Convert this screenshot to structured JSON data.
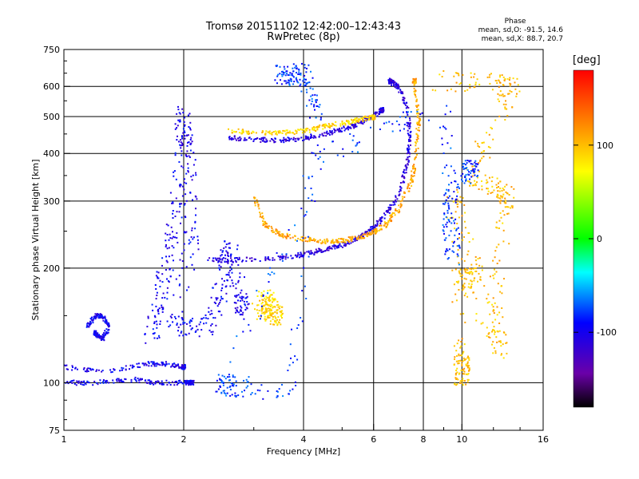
{
  "header": {
    "title_line1": "Tromsø 20151102 12:42:00–12:43:43",
    "title_line2": "RwPretec (8p)",
    "phase_title": "Phase",
    "phase_o": "mean, sd,O: -91.5, 14.6",
    "phase_x": "mean, sd,X:  88.7, 20.7"
  },
  "colorbar": {
    "unit": "[deg]",
    "ticks": [
      "100",
      "0",
      "-100"
    ],
    "tick_values": [
      100,
      0,
      -100
    ],
    "range": [
      -180,
      180
    ]
  },
  "chart_data": {
    "type": "scatter",
    "xlabel": "Frequency [MHz]",
    "ylabel": "Stationary phase Virtual Height [km]",
    "x_scale": "log",
    "y_scale": "log",
    "xlim": [
      1,
      16
    ],
    "ylim": [
      75,
      750
    ],
    "x_ticks": [
      1,
      2,
      4,
      6,
      8,
      10,
      16
    ],
    "x_tick_labels": [
      "1",
      "2",
      "4",
      "6",
      "8",
      "10",
      "16"
    ],
    "y_ticks": [
      75,
      100,
      200,
      300,
      400,
      500,
      600,
      750
    ],
    "y_tick_labels": [
      "75",
      "100",
      "200",
      "300",
      "400",
      "500",
      "600",
      "750"
    ],
    "grid": true,
    "series": [
      {
        "kind": "band",
        "points": [
          [
            1.0,
            100
          ],
          [
            1.2,
            100
          ],
          [
            1.5,
            102
          ],
          [
            1.7,
            100
          ],
          [
            2.0,
            100
          ],
          [
            2.1,
            100
          ]
        ],
        "phase": -100
      },
      {
        "kind": "band",
        "points": [
          [
            1.0,
            110
          ],
          [
            1.3,
            107
          ],
          [
            1.6,
            112
          ],
          [
            1.8,
            112
          ],
          [
            2.0,
            110
          ]
        ],
        "phase": -100
      },
      {
        "kind": "cloud",
        "points": [
          [
            1.65,
            130
          ],
          [
            1.75,
            170
          ],
          [
            1.85,
            230
          ],
          [
            1.95,
            330
          ],
          [
            2.0,
            520
          ],
          [
            2.05,
            380
          ],
          [
            2.1,
            240
          ],
          [
            1.9,
            140
          ],
          [
            2.3,
            140
          ],
          [
            2.5,
            180
          ],
          [
            2.6,
            230
          ],
          [
            2.8,
            160
          ]
        ],
        "phase": -100
      },
      {
        "kind": "line",
        "points": [
          [
            2.3,
            210
          ],
          [
            2.8,
            210
          ],
          [
            3.5,
            213
          ],
          [
            4.0,
            217
          ],
          [
            4.5,
            223
          ],
          [
            5.0,
            230
          ],
          [
            5.5,
            240
          ],
          [
            6.0,
            255
          ],
          [
            6.5,
            280
          ],
          [
            7.0,
            320
          ],
          [
            7.3,
            380
          ],
          [
            7.4,
            440
          ],
          [
            7.3,
            530
          ],
          [
            6.9,
            600
          ],
          [
            6.6,
            620
          ]
        ],
        "phase": -110
      },
      {
        "kind": "line",
        "points": [
          [
            3.0,
            310
          ],
          [
            3.2,
            260
          ],
          [
            3.5,
            245
          ],
          [
            4.0,
            238
          ],
          [
            4.5,
            235
          ],
          [
            5.0,
            236
          ],
          [
            5.5,
            240
          ],
          [
            6.0,
            248
          ],
          [
            6.5,
            262
          ],
          [
            7.0,
            290
          ],
          [
            7.5,
            340
          ],
          [
            7.7,
            420
          ],
          [
            7.8,
            500
          ],
          [
            7.6,
            620
          ]
        ],
        "phase": 110
      },
      {
        "kind": "line",
        "points": [
          [
            2.6,
            440
          ],
          [
            3.0,
            435
          ],
          [
            3.5,
            433
          ],
          [
            4.0,
            438
          ],
          [
            4.5,
            450
          ],
          [
            5.0,
            462
          ],
          [
            5.5,
            478
          ],
          [
            6.0,
            500
          ],
          [
            6.3,
            520
          ]
        ],
        "phase": -110
      },
      {
        "kind": "line",
        "points": [
          [
            2.6,
            460
          ],
          [
            3.0,
            455
          ],
          [
            3.5,
            452
          ],
          [
            4.0,
            458
          ],
          [
            4.5,
            470
          ],
          [
            5.0,
            480
          ],
          [
            5.5,
            490
          ],
          [
            6.0,
            498
          ]
        ],
        "phase": 90
      },
      {
        "kind": "cloud",
        "points": [
          [
            3.1,
            150
          ],
          [
            3.2,
            165
          ],
          [
            3.3,
            160
          ],
          [
            3.4,
            150
          ]
        ],
        "phase": 90
      },
      {
        "kind": "band",
        "points": [
          [
            1.15,
            140
          ],
          [
            1.2,
            150
          ],
          [
            1.25,
            150
          ],
          [
            1.3,
            140
          ],
          [
            1.25,
            130
          ],
          [
            1.2,
            135
          ]
        ],
        "phase": -100
      },
      {
        "kind": "cloud",
        "points": [
          [
            8.8,
            620
          ],
          [
            12.5,
            610
          ],
          [
            13.5,
            590
          ],
          [
            10.5,
            350
          ],
          [
            12.5,
            320
          ],
          [
            13.0,
            300
          ],
          [
            12.0,
            170
          ],
          [
            12.5,
            120
          ],
          [
            10.0,
            190
          ],
          [
            11.0,
            190
          ],
          [
            9.5,
            330
          ],
          [
            10.0,
            120
          ],
          [
            10.0,
            105
          ]
        ],
        "phase": 100
      },
      {
        "kind": "cloud",
        "points": [
          [
            3.5,
            640
          ],
          [
            3.7,
            640
          ],
          [
            4.0,
            650
          ],
          [
            4.3,
            520
          ],
          [
            3.7,
            95
          ],
          [
            2.6,
            98
          ],
          [
            2.5,
            99
          ],
          [
            4.5,
            400
          ],
          [
            9.0,
            530
          ],
          [
            9.5,
            210
          ],
          [
            9.3,
            300
          ],
          [
            10.5,
            360
          ]
        ],
        "phase": -80
      }
    ]
  }
}
